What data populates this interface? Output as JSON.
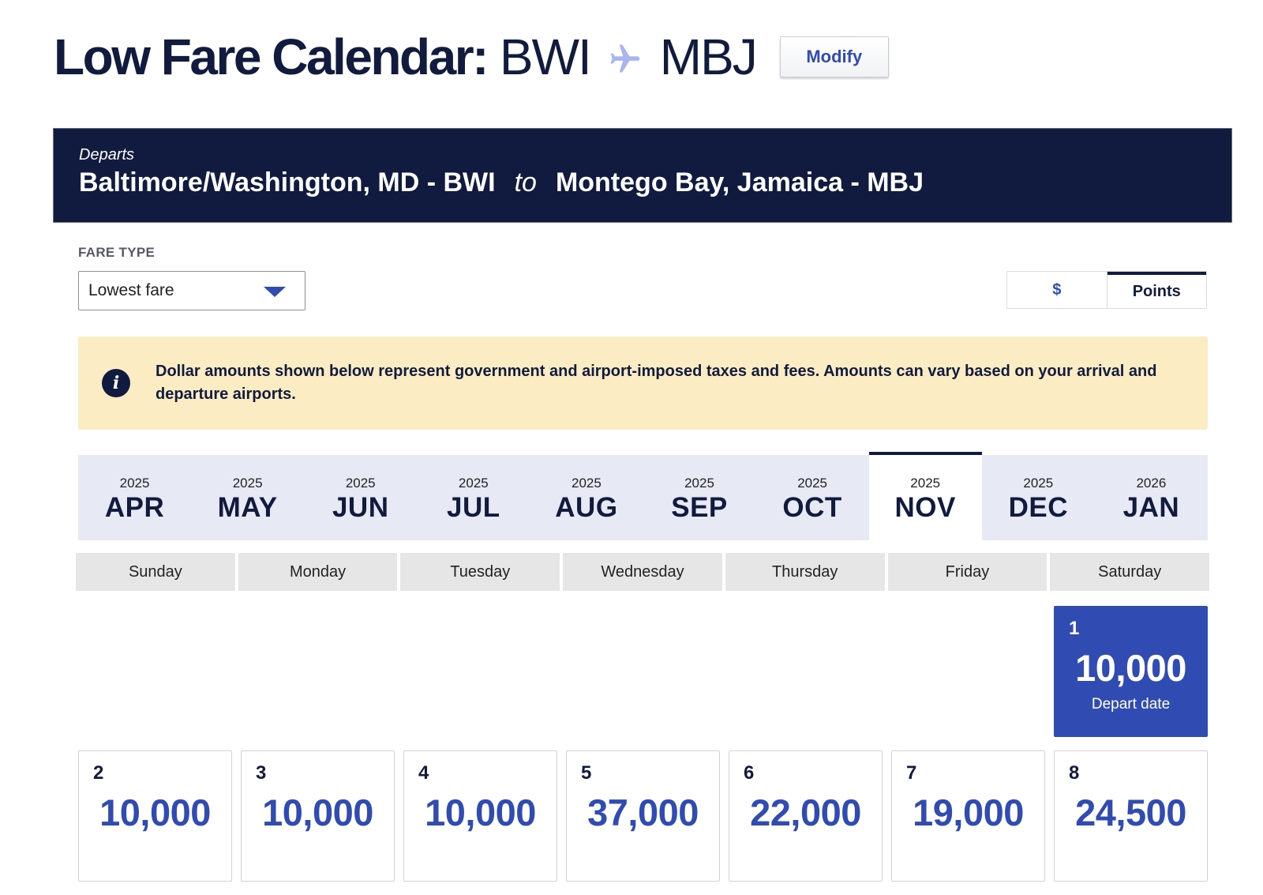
{
  "header": {
    "title_strong": "Low Fare Calendar:",
    "origin_code": "BWI",
    "destination_code": "MBJ",
    "route_icon": "plane-icon",
    "modify_label": "Modify"
  },
  "route": {
    "departs_label": "Departs",
    "origin": "Baltimore/Washington, MD - BWI",
    "to_label": "to",
    "destination": "Montego Bay, Jamaica - MBJ"
  },
  "fare_type": {
    "label": "FARE TYPE",
    "selected": "Lowest fare"
  },
  "currency": {
    "dollar_label": "$",
    "points_label": "Points",
    "selected": "Points"
  },
  "notice": {
    "icon": "info-icon",
    "text": "Dollar amounts shown below represent government and airport-imposed taxes and fees. Amounts can vary based on your arrival and departure airports."
  },
  "months": [
    {
      "year": "2025",
      "month": "APR",
      "selected": false
    },
    {
      "year": "2025",
      "month": "MAY",
      "selected": false
    },
    {
      "year": "2025",
      "month": "JUN",
      "selected": false
    },
    {
      "year": "2025",
      "month": "JUL",
      "selected": false
    },
    {
      "year": "2025",
      "month": "AUG",
      "selected": false
    },
    {
      "year": "2025",
      "month": "SEP",
      "selected": false
    },
    {
      "year": "2025",
      "month": "OCT",
      "selected": false
    },
    {
      "year": "2025",
      "month": "NOV",
      "selected": true
    },
    {
      "year": "2025",
      "month": "DEC",
      "selected": false
    },
    {
      "year": "2026",
      "month": "JAN",
      "selected": false
    }
  ],
  "weekdays": [
    "Sunday",
    "Monday",
    "Tuesday",
    "Wednesday",
    "Thursday",
    "Friday",
    "Saturday"
  ],
  "calendar": {
    "first_row": [
      {
        "day": "1",
        "fare": "10,000",
        "tag": "Depart date",
        "active": true
      }
    ],
    "second_row": [
      {
        "day": "2",
        "fare": "10,000"
      },
      {
        "day": "3",
        "fare": "10,000"
      },
      {
        "day": "4",
        "fare": "10,000"
      },
      {
        "day": "5",
        "fare": "37,000"
      },
      {
        "day": "6",
        "fare": "22,000"
      },
      {
        "day": "7",
        "fare": "19,000"
      },
      {
        "day": "8",
        "fare": "24,500"
      }
    ]
  },
  "colors": {
    "navy": "#111b40",
    "accent_blue": "#304cb2",
    "plane_icon": "#a9b5ee",
    "notice_bg": "#fcecc4",
    "month_bar_bg": "#e7e9f4"
  }
}
